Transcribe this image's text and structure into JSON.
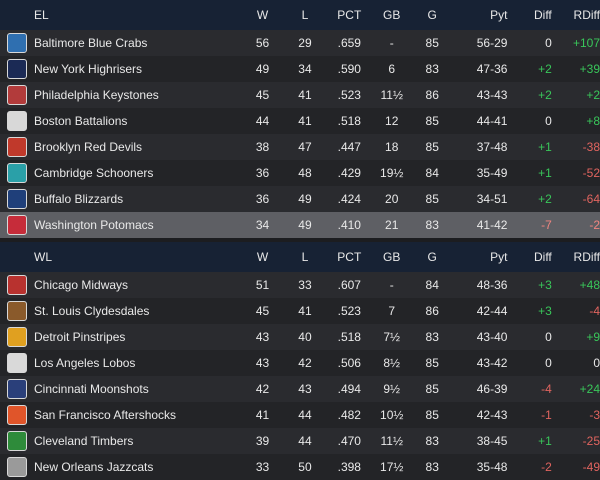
{
  "columns": {
    "w": "W",
    "l": "L",
    "pct": "PCT",
    "gb": "GB",
    "g": "G",
    "pyt": "Pyt",
    "diff": "Diff",
    "rdiff": "RDiff"
  },
  "el": {
    "label": "EL",
    "teams": [
      {
        "name": "Baltimore Blue Crabs",
        "w": "56",
        "l": "29",
        "pct": ".659",
        "gb": "-",
        "g": "85",
        "pyt": "56-29",
        "diff": "0",
        "rdiff": "+107",
        "logo_icon": "blue-crab-logo",
        "logo_color": "#2f6fb0"
      },
      {
        "name": "New York Highrisers",
        "w": "49",
        "l": "34",
        "pct": ".590",
        "gb": "6",
        "g": "83",
        "pyt": "47-36",
        "diff": "+2",
        "rdiff": "+39",
        "logo_icon": "ny-logo",
        "logo_color": "#1b2a55"
      },
      {
        "name": "Philadelphia Keystones",
        "w": "45",
        "l": "41",
        "pct": ".523",
        "gb": "11½",
        "g": "86",
        "pyt": "43-43",
        "diff": "+2",
        "rdiff": "+2",
        "logo_icon": "keystone-logo",
        "logo_color": "#b23b3b"
      },
      {
        "name": "Boston Battalions",
        "w": "44",
        "l": "41",
        "pct": ".518",
        "gb": "12",
        "g": "85",
        "pyt": "44-41",
        "diff": "0",
        "rdiff": "+8",
        "logo_icon": "boston-logo",
        "logo_color": "#d8d8d8"
      },
      {
        "name": "Brooklyn Red Devils",
        "w": "38",
        "l": "47",
        "pct": ".447",
        "gb": "18",
        "g": "85",
        "pyt": "37-48",
        "diff": "+1",
        "rdiff": "-38",
        "logo_icon": "red-devil-logo",
        "logo_color": "#c0392b"
      },
      {
        "name": "Cambridge Schooners",
        "w": "36",
        "l": "48",
        "pct": ".429",
        "gb": "19½",
        "g": "84",
        "pyt": "35-49",
        "diff": "+1",
        "rdiff": "-52",
        "logo_icon": "schooner-logo",
        "logo_color": "#2aa0a8"
      },
      {
        "name": "Buffalo Blizzards",
        "w": "36",
        "l": "49",
        "pct": ".424",
        "gb": "20",
        "g": "85",
        "pyt": "34-51",
        "diff": "+2",
        "rdiff": "-64",
        "logo_icon": "blizzard-logo",
        "logo_color": "#1f3f7a"
      },
      {
        "name": "Washington Potomacs",
        "w": "34",
        "l": "49",
        "pct": ".410",
        "gb": "21",
        "g": "83",
        "pyt": "41-42",
        "diff": "-7",
        "rdiff": "-2",
        "logo_icon": "potomac-logo",
        "logo_color": "#c62c3a",
        "selected": true
      }
    ]
  },
  "wl": {
    "label": "WL",
    "teams": [
      {
        "name": "Chicago Midways",
        "w": "51",
        "l": "33",
        "pct": ".607",
        "gb": "-",
        "g": "84",
        "pyt": "48-36",
        "diff": "+3",
        "rdiff": "+48",
        "logo_icon": "midway-logo",
        "logo_color": "#b8322f"
      },
      {
        "name": "St. Louis Clydesdales",
        "w": "45",
        "l": "41",
        "pct": ".523",
        "gb": "7",
        "g": "86",
        "pyt": "42-44",
        "diff": "+3",
        "rdiff": "-4",
        "logo_icon": "clydesdale-logo",
        "logo_color": "#8a5a2b"
      },
      {
        "name": "Detroit Pinstripes",
        "w": "43",
        "l": "40",
        "pct": ".518",
        "gb": "7½",
        "g": "83",
        "pyt": "43-40",
        "diff": "0",
        "rdiff": "+9",
        "logo_icon": "pinstripe-logo",
        "logo_color": "#e0a020"
      },
      {
        "name": "Los Angeles Lobos",
        "w": "43",
        "l": "42",
        "pct": ".506",
        "gb": "8½",
        "g": "85",
        "pyt": "43-42",
        "diff": "0",
        "rdiff": "0",
        "logo_icon": "lobo-logo",
        "logo_color": "#d9d9d9"
      },
      {
        "name": "Cincinnati Moonshots",
        "w": "42",
        "l": "43",
        "pct": ".494",
        "gb": "9½",
        "g": "85",
        "pyt": "46-39",
        "diff": "-4",
        "rdiff": "+24",
        "logo_icon": "moonshot-logo",
        "logo_color": "#2a3f7a"
      },
      {
        "name": "San Francisco Aftershocks",
        "w": "41",
        "l": "44",
        "pct": ".482",
        "gb": "10½",
        "g": "85",
        "pyt": "42-43",
        "diff": "-1",
        "rdiff": "-3",
        "logo_icon": "aftershock-logo",
        "logo_color": "#e0552a"
      },
      {
        "name": "Cleveland Timbers",
        "w": "39",
        "l": "44",
        "pct": ".470",
        "gb": "11½",
        "g": "83",
        "pyt": "38-45",
        "diff": "+1",
        "rdiff": "-25",
        "logo_icon": "timber-logo",
        "logo_color": "#2e8b3a"
      },
      {
        "name": "New Orleans Jazzcats",
        "w": "33",
        "l": "50",
        "pct": ".398",
        "gb": "17½",
        "g": "83",
        "pyt": "35-48",
        "diff": "-2",
        "rdiff": "-49",
        "logo_icon": "jazzcat-logo",
        "logo_color": "#9a9a9a"
      }
    ]
  }
}
